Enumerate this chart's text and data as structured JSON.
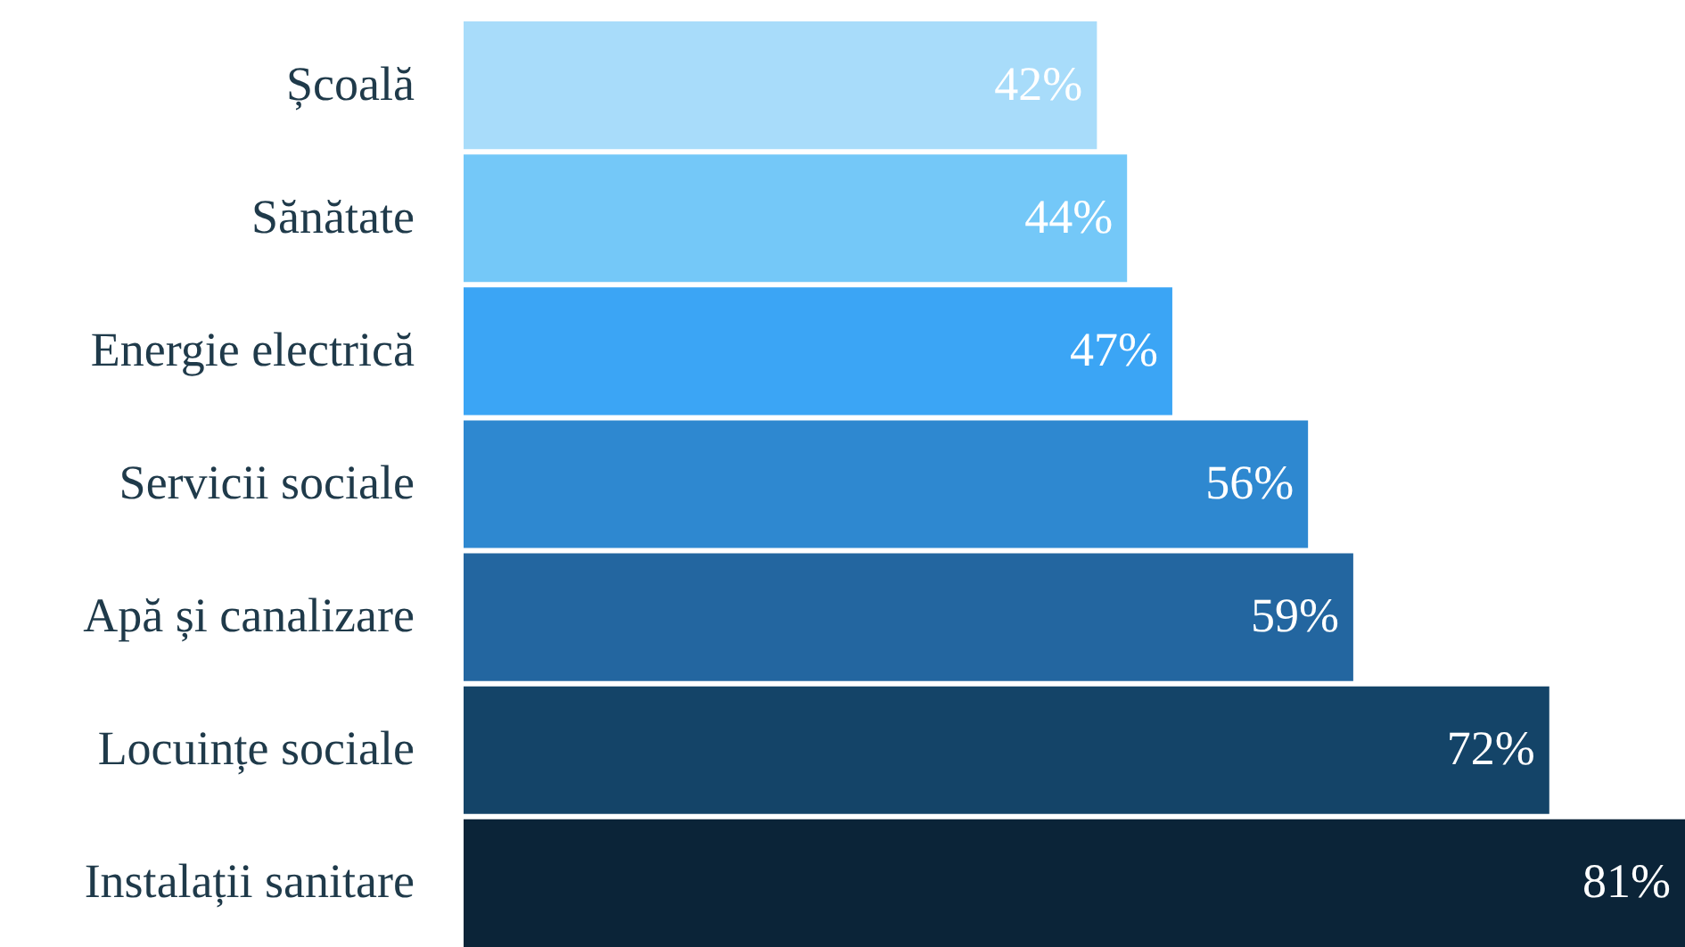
{
  "chart_data": {
    "type": "bar",
    "orientation": "horizontal",
    "categories": [
      "Școală",
      "Sănătate",
      "Energie electrică",
      "Servicii sociale",
      "Apă și canalizare",
      "Locuințe sociale",
      "Instalații sanitare"
    ],
    "values": [
      42,
      44,
      47,
      56,
      59,
      72,
      81
    ],
    "value_labels": [
      "42%",
      "44%",
      "47%",
      "56%",
      "59%",
      "72%",
      "81%"
    ],
    "colors": [
      "#a8dcfa",
      "#74c8f8",
      "#3ba5f5",
      "#2e88d0",
      "#2366a0",
      "#144468",
      "#0b2438"
    ],
    "xlim": [
      0,
      81
    ],
    "tick_labels": "y"
  }
}
